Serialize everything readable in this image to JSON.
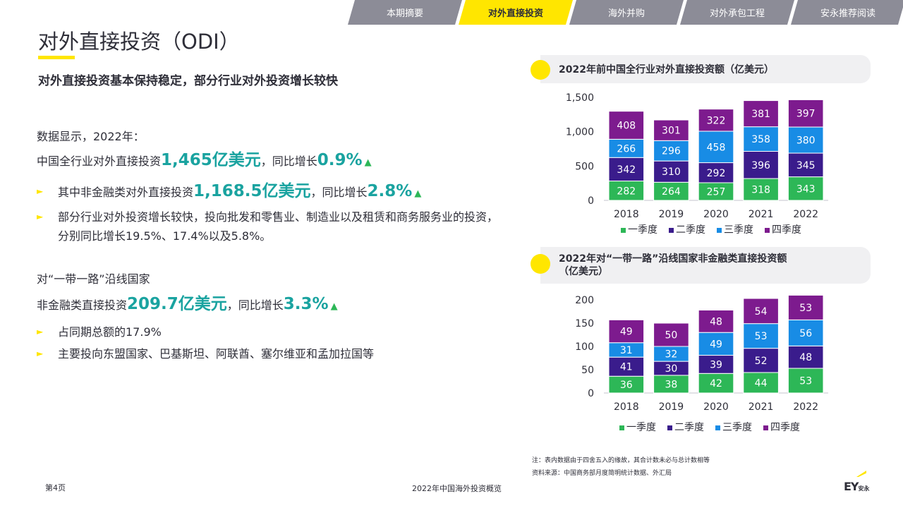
{
  "nav": {
    "tabs": [
      "本期摘要",
      "对外直接投资",
      "海外并购",
      "对外承包工程",
      "安永推荐阅读"
    ],
    "active_index": 1
  },
  "page": {
    "title": "对外直接投资（ODI）",
    "subtitle": "对外直接投资基本保持稳定，部分行业对外投资增长较快"
  },
  "content": {
    "intro": "数据显示，2022年：",
    "line1": {
      "prefix": "中国全行业对外直接投资",
      "amount": "1,465亿美元",
      "mid": "，同比增长",
      "rate": "0.9%",
      "arrow": "▲"
    },
    "bullet1": {
      "prefix": "其中非金融类对外直接投资",
      "amount": "1,168.5亿美元",
      "mid": "，同比增长",
      "rate": "2.8%",
      "arrow": "▲"
    },
    "bullet2": "部分行业对外投资增长较快，投向批发和零售业、制造业以及租赁和商务服务业的投资，分别同比增长19.5%、17.4%以及5.8%。",
    "section2_title": "对“一带一路”沿线国家",
    "line2": {
      "prefix": "非金融类直接投资",
      "amount": "209.7亿美元",
      "mid": "，同比增长",
      "rate": "3.3%",
      "arrow": "▲"
    },
    "bullet3": "占同期总额的17.9%",
    "bullet4": "主要投向东盟国家、巴基斯坦、阿联酋、塞尔维亚和孟加拉国等",
    "bullet_marker": "►"
  },
  "notes": {
    "note1": "注：表内数据由于四舍五入的缘故，其合计数未必与总计数相等",
    "note2": "资料来源：中国商务部月度简明统计数据、外汇局"
  },
  "footer": {
    "page": "第4页",
    "doc_title": "2022年中国海外投资概览",
    "logo": "EY",
    "logo_cn": "安永"
  },
  "colors": {
    "q1": "#2db757",
    "q2": "#3a1c8c",
    "q3": "#188ce5",
    "q4": "#7d1b8e",
    "accent": "#ffe600",
    "highlight": "#1aa3a0"
  },
  "chart_data": [
    {
      "type": "bar",
      "stacked": true,
      "title": "2022年前中国全行业对外直接投资额（亿美元）",
      "categories": [
        "2018",
        "2019",
        "2020",
        "2021",
        "2022"
      ],
      "series": [
        {
          "name": "一季度",
          "values": [
            282,
            264,
            257,
            318,
            343
          ]
        },
        {
          "name": "二季度",
          "values": [
            342,
            310,
            292,
            396,
            345
          ]
        },
        {
          "name": "三季度",
          "values": [
            266,
            296,
            458,
            358,
            380
          ]
        },
        {
          "name": "四季度",
          "values": [
            408,
            301,
            322,
            381,
            397
          ]
        }
      ],
      "ylim": [
        0,
        1500
      ],
      "yticks": [
        "0",
        "500",
        "1,000",
        "1,500"
      ],
      "ytick_values": [
        0,
        500,
        1000,
        1500
      ],
      "grid": false,
      "legend": "bottom"
    },
    {
      "type": "bar",
      "stacked": true,
      "title": "2022年对“一带一路”沿线国家非金融类直接投资额（亿美元）",
      "title_line1": "2022年对“一带一路”沿线国家非金融类直接投资额",
      "title_line2": "（亿美元）",
      "categories": [
        "2018",
        "2019",
        "2020",
        "2021",
        "2022"
      ],
      "series": [
        {
          "name": "一季度",
          "values": [
            36,
            38,
            42,
            44,
            53
          ]
        },
        {
          "name": "二季度",
          "values": [
            41,
            30,
            39,
            52,
            48
          ]
        },
        {
          "name": "三季度",
          "values": [
            31,
            32,
            49,
            53,
            56
          ]
        },
        {
          "name": "四季度",
          "values": [
            49,
            50,
            48,
            54,
            53
          ]
        }
      ],
      "ylim": [
        0,
        200
      ],
      "yticks": [
        "0",
        "50",
        "100",
        "150",
        "200"
      ],
      "ytick_values": [
        0,
        50,
        100,
        150,
        200
      ],
      "grid": false,
      "legend": "bottom"
    }
  ]
}
